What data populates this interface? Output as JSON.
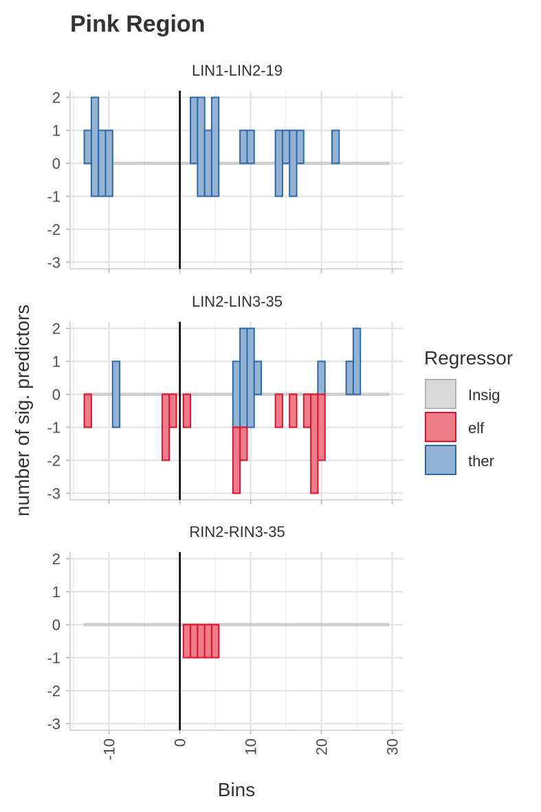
{
  "chart_data": {
    "type": "bar",
    "title": "Pink Region",
    "xlabel": "Bins",
    "ylabel": "number of sig. predictors",
    "xlim": [
      -15.5,
      31.5
    ],
    "ylim": [
      -3.2,
      2.2
    ],
    "x_ticks": [
      -10,
      0,
      10,
      20,
      30
    ],
    "y_ticks": [
      2,
      1,
      0,
      -1,
      -2,
      -3
    ],
    "vertical_line_x": 0,
    "grid": true,
    "legend": {
      "title": "Regressor",
      "position": "right",
      "entries": [
        {
          "label": "Insig",
          "fill": "#d9d9d9",
          "stroke": "#b3b3b3"
        },
        {
          "label": "elf",
          "fill": "#ee7d8a",
          "stroke": "#e0102e"
        },
        {
          "label": "ther",
          "fill": "#94b2d4",
          "stroke": "#2d68a8"
        }
      ]
    },
    "insig_ranges": [
      [
        -13.5,
        29.5
      ]
    ],
    "panels": [
      {
        "strip": "LIN1-LIN2-19",
        "ther": [
          {
            "x": -13,
            "ymin": 0,
            "ymax": 1
          },
          {
            "x": -12,
            "ymin": -1,
            "ymax": 2
          },
          {
            "x": -11,
            "ymin": -1,
            "ymax": 1
          },
          {
            "x": -10,
            "ymin": -1,
            "ymax": 1
          },
          {
            "x": 2,
            "ymin": 0,
            "ymax": 2
          },
          {
            "x": 3,
            "ymin": -1,
            "ymax": 2
          },
          {
            "x": 4,
            "ymin": -1,
            "ymax": 1
          },
          {
            "x": 5,
            "ymin": -1,
            "ymax": 2
          },
          {
            "x": 9,
            "ymin": 0,
            "ymax": 1
          },
          {
            "x": 10,
            "ymin": 0,
            "ymax": 1
          },
          {
            "x": 14,
            "ymin": -1,
            "ymax": 1
          },
          {
            "x": 15,
            "ymin": 0,
            "ymax": 1
          },
          {
            "x": 16,
            "ymin": -1,
            "ymax": 1
          },
          {
            "x": 17,
            "ymin": 0,
            "ymax": 1
          },
          {
            "x": 22,
            "ymin": 0,
            "ymax": 1
          }
        ],
        "elf": []
      },
      {
        "strip": "LIN2-LIN3-35",
        "ther": [
          {
            "x": -9,
            "ymin": -1,
            "ymax": 1
          },
          {
            "x": 8,
            "ymin": -1,
            "ymax": 1
          },
          {
            "x": 9,
            "ymin": -1,
            "ymax": 2
          },
          {
            "x": 10,
            "ymin": -1,
            "ymax": 2
          },
          {
            "x": 11,
            "ymin": 0,
            "ymax": 1
          },
          {
            "x": 20,
            "ymin": 0,
            "ymax": 1
          },
          {
            "x": 24,
            "ymin": 0,
            "ymax": 1
          },
          {
            "x": 25,
            "ymin": 0,
            "ymax": 2
          }
        ],
        "elf": [
          {
            "x": -13,
            "ymin": -1,
            "ymax": 0
          },
          {
            "x": -2,
            "ymin": -2,
            "ymax": 0
          },
          {
            "x": -1,
            "ymin": -1,
            "ymax": 0
          },
          {
            "x": 1,
            "ymin": -1,
            "ymax": 0
          },
          {
            "x": 8,
            "ymin": -3,
            "ymax": -1
          },
          {
            "x": 9,
            "ymin": -2,
            "ymax": -1
          },
          {
            "x": 14,
            "ymin": -1,
            "ymax": 0
          },
          {
            "x": 16,
            "ymin": -1,
            "ymax": 0
          },
          {
            "x": 18,
            "ymin": -1,
            "ymax": 0
          },
          {
            "x": 19,
            "ymin": -3,
            "ymax": 0
          },
          {
            "x": 20,
            "ymin": -2,
            "ymax": 0
          }
        ]
      },
      {
        "strip": "RIN2-RIN3-35",
        "ther": [],
        "elf": [
          {
            "x": 1,
            "ymin": -1,
            "ymax": 0
          },
          {
            "x": 2,
            "ymin": -1,
            "ymax": 0
          },
          {
            "x": 3,
            "ymin": -1,
            "ymax": 0
          },
          {
            "x": 4,
            "ymin": -1,
            "ymax": 0
          },
          {
            "x": 5,
            "ymin": -1,
            "ymax": 0
          }
        ]
      }
    ]
  }
}
